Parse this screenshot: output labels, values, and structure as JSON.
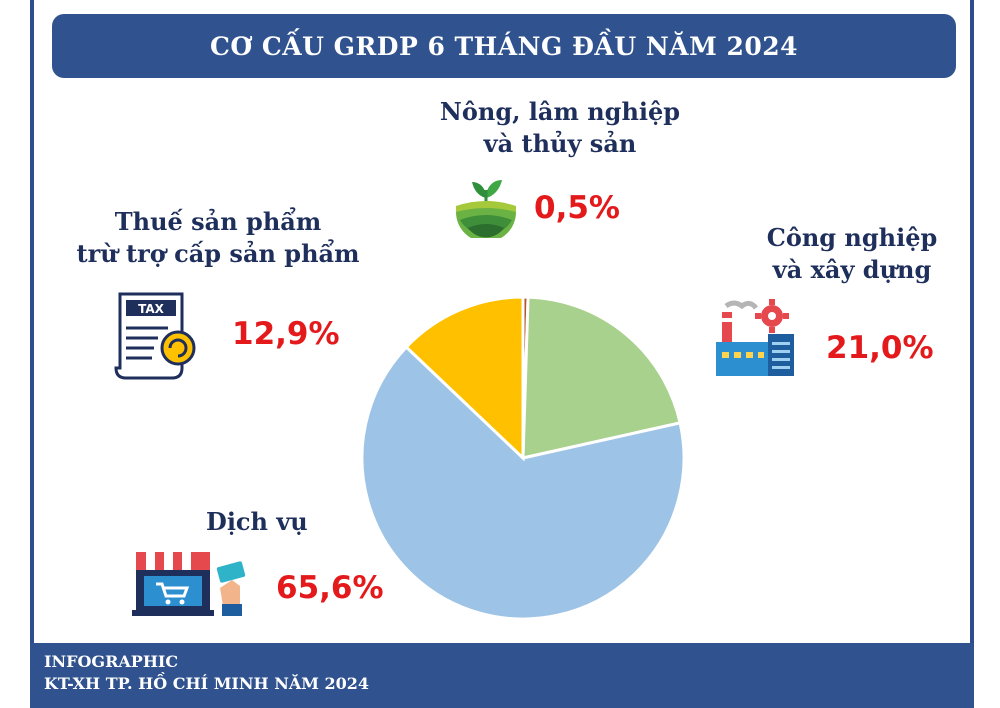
{
  "title": "CƠ CẤU GRDP 6 THÁNG ĐẦU NĂM 2024",
  "footer": {
    "line1": "INFOGRAPHIC",
    "line2": "KT-XH TP. HỒ CHÍ MINH NĂM 2024"
  },
  "segments": {
    "agriculture": {
      "label_line1": "Nông, lâm nghiệp",
      "label_line2": "và thủy sản",
      "value": "0,5%",
      "icon": "farm-field-icon"
    },
    "industry": {
      "label_line1": "Công nghiệp",
      "label_line2": "và xây dựng",
      "value": "21,0%",
      "icon": "factory-gear-icon"
    },
    "services": {
      "label_line1": "Dịch vụ",
      "value": "65,6%",
      "icon": "shop-cart-icon"
    },
    "tax": {
      "label_line1": "Thuế sản phẩm",
      "label_line2": "trừ trợ cấp sản phẩm",
      "value": "12,9%",
      "icon": "tax-document-icon",
      "icon_text": "TAX"
    }
  },
  "colors": {
    "banner": "#30538f",
    "percent": "#e3191b",
    "label": "#1f2f5c"
  },
  "chart_data": {
    "type": "pie",
    "title": "CƠ CẤU GRDP 6 THÁNG ĐẦU NĂM 2024",
    "unit": "%",
    "start": "12 o'clock, clockwise",
    "slices": [
      {
        "name": "Nông, lâm nghiệp và thủy sản",
        "value": 0.5,
        "label": "0,5%",
        "color": "#b4532a"
      },
      {
        "name": "Công nghiệp và xây dựng",
        "value": 21.0,
        "label": "21,0%",
        "color": "#a9d18e"
      },
      {
        "name": "Dịch vụ",
        "value": 65.6,
        "label": "65,6%",
        "color": "#9dc3e6"
      },
      {
        "name": "Thuế sản phẩm trừ trợ cấp sản phẩm",
        "value": 12.9,
        "label": "12,9%",
        "color": "#ffc000"
      }
    ]
  }
}
